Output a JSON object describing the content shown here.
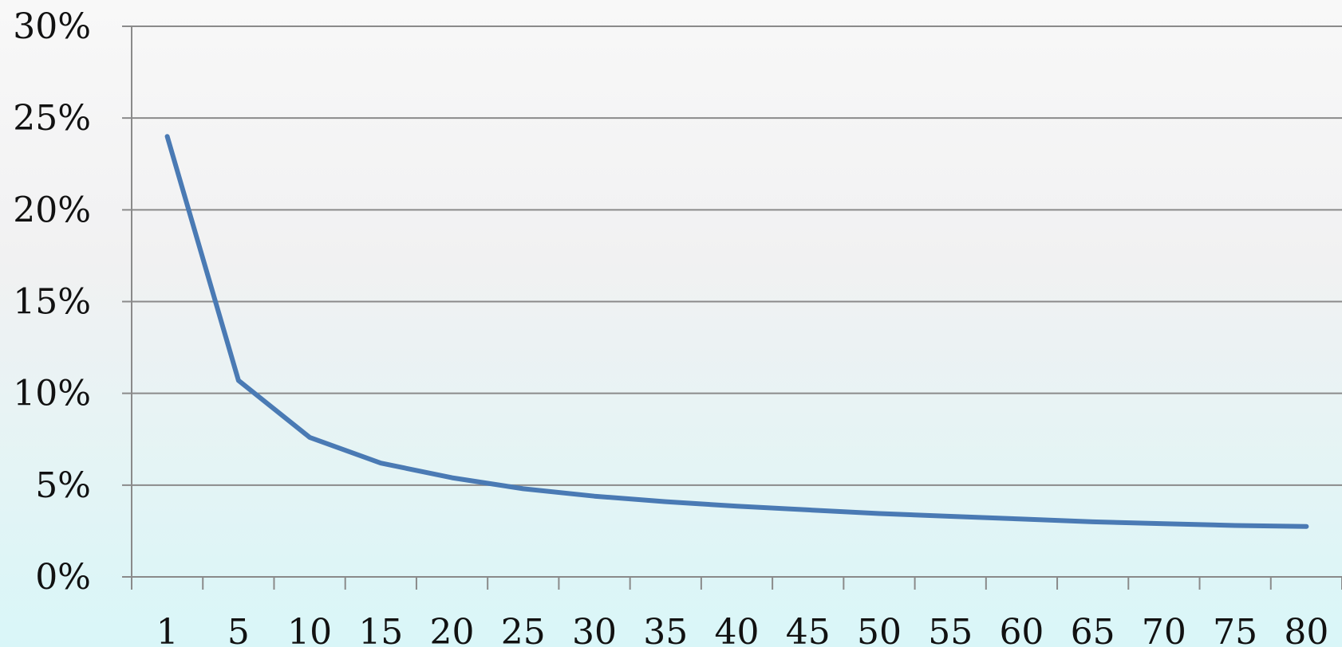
{
  "chart_data": {
    "type": "line",
    "title": "",
    "xlabel": "",
    "ylabel": "",
    "categories": [
      "1",
      "5",
      "10",
      "15",
      "20",
      "25",
      "30",
      "35",
      "40",
      "45",
      "50",
      "55",
      "60",
      "65",
      "70",
      "75",
      "80"
    ],
    "y_tick_labels": [
      "0%",
      "5%",
      "10%",
      "15%",
      "20%",
      "25%",
      "30%"
    ],
    "ylim": [
      0,
      30
    ],
    "grid": true,
    "legend": "none",
    "series": [
      {
        "color": "#4a7ab4",
        "values": [
          24.0,
          10.7,
          7.6,
          6.2,
          5.4,
          4.8,
          4.4,
          4.1,
          3.85,
          3.65,
          3.45,
          3.3,
          3.15,
          3.0,
          2.9,
          2.8,
          2.75
        ]
      }
    ]
  }
}
